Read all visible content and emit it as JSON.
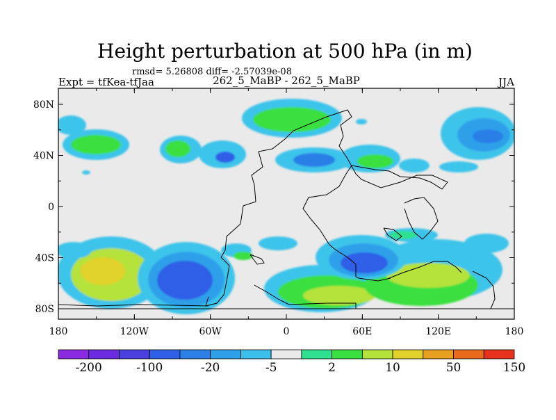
{
  "chart_data": {
    "type": "contour-map",
    "title": "Height perturbation at 500 hPa (in m)",
    "stats_line": "rmsd= 5.26808 diff= -2.57039e-08",
    "left_label": "Expt = tfKea-tfJaa",
    "center_label": "262_5_MaBP - 262_5_MaBP",
    "right_label": "JJA",
    "x_axis": {
      "range": [
        -180,
        180
      ],
      "ticks": [
        -180,
        -120,
        -60,
        0,
        60,
        120,
        180
      ],
      "tick_labels": [
        "180",
        "120W",
        "60W",
        "0",
        "60E",
        "120E",
        "180"
      ]
    },
    "y_axis": {
      "range": [
        -90,
        90
      ],
      "ticks": [
        80,
        40,
        0,
        -40,
        -80
      ],
      "tick_labels": [
        "80N",
        "40N",
        "0",
        "40S",
        "80S"
      ]
    },
    "colorbar": {
      "labels": [
        "-200",
        "-100",
        "-20",
        "-5",
        "2",
        "10",
        "50",
        "150"
      ],
      "colors": [
        "#8a2be2",
        "#6b2be0",
        "#4b3fe0",
        "#2f5fe6",
        "#2b7fe6",
        "#2ea0ea",
        "#3cbfea",
        "#eaeaea",
        "#2fe090",
        "#3ae040",
        "#b5e23a",
        "#e0d22a",
        "#e8a020",
        "#e86a1a",
        "#e8321e"
      ]
    },
    "fill_colors": {
      "background": "#eaeaea",
      "light_blue": "#3cc4ea",
      "mid_blue": "#2ea0ea",
      "blue": "#2b7fe6",
      "deep_blue": "#2f5fe6",
      "green": "#3ae040",
      "teal_green": "#2fe090",
      "yellow_green": "#b5e23a",
      "yellow": "#e0d22a"
    }
  }
}
